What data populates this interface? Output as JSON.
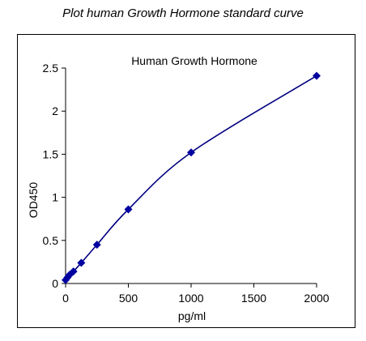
{
  "page": {
    "title": "Plot human Growth Hormone standard curve"
  },
  "chart_data": {
    "type": "scatter",
    "title": "Human Growth Hormone",
    "xlabel": "pg/ml",
    "ylabel": "OD450",
    "xlim": [
      0,
      2000
    ],
    "ylim": [
      0,
      2.5
    ],
    "xticks": [
      0,
      500,
      1000,
      1500,
      2000
    ],
    "xtick_labels": [
      "0",
      "500",
      "1000",
      "1500",
      "2000"
    ],
    "yticks": [
      0,
      0.5,
      1,
      1.5,
      2,
      2.5
    ],
    "ytick_labels": [
      "0",
      "0.5",
      "1",
      "1.5",
      "2",
      "2.5"
    ],
    "grid": false,
    "marker_color": "#0000a0",
    "line_color": "#000080",
    "series": [
      {
        "x": [
          0,
          15.6,
          31.25,
          62.5,
          125,
          250,
          500,
          1000,
          2000
        ],
        "y": [
          0.04,
          0.07,
          0.1,
          0.14,
          0.24,
          0.45,
          0.86,
          1.52,
          2.41
        ]
      }
    ]
  }
}
